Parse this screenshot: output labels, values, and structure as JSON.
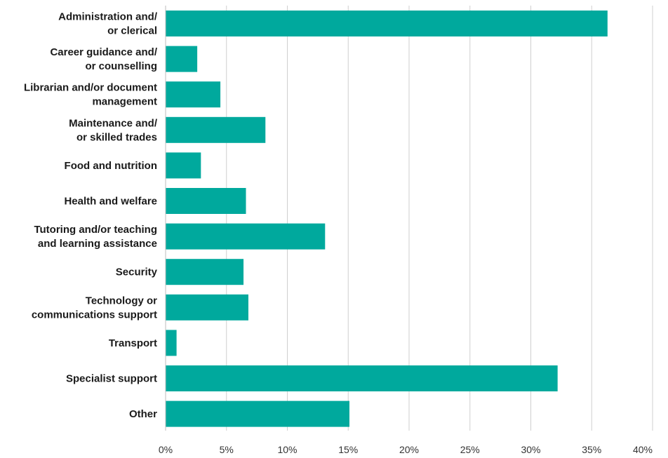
{
  "chart_data": {
    "type": "bar",
    "orientation": "horizontal",
    "title": "",
    "xlabel": "",
    "ylabel": "",
    "xlim": [
      0,
      40
    ],
    "x_ticks": [
      "0%",
      "5%",
      "10%",
      "15%",
      "20%",
      "25%",
      "30%",
      "35%",
      "40%"
    ],
    "grid": true,
    "bar_color": "#00a99d",
    "categories": [
      [
        "Administration and/",
        "or clerical"
      ],
      [
        "Career guidance and/",
        "or counselling"
      ],
      [
        "Librarian and/or document",
        "management"
      ],
      [
        "Maintenance and/",
        "or skilled trades"
      ],
      [
        "Food and nutrition"
      ],
      [
        "Health and welfare"
      ],
      [
        "Tutoring and/or teaching",
        "and learning assistance"
      ],
      [
        "Security"
      ],
      [
        "Technology or",
        "communications support"
      ],
      [
        "Transport"
      ],
      [
        "Specialist support"
      ],
      [
        "Other"
      ]
    ],
    "values": [
      36.3,
      2.6,
      4.5,
      8.2,
      2.9,
      6.6,
      13.1,
      6.4,
      6.8,
      0.9,
      32.2,
      15.1
    ]
  }
}
